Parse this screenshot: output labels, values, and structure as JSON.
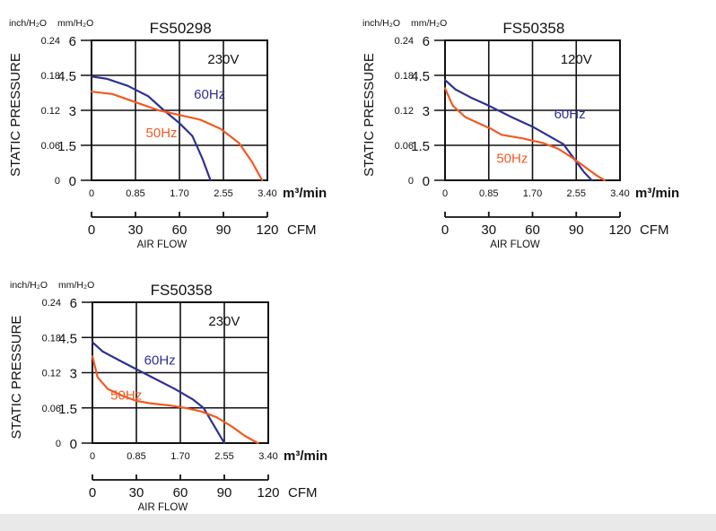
{
  "chart_data": [
    {
      "type": "line",
      "title": "FS50298",
      "voltage": "230V",
      "ylabel": "STATIC PRESSURE",
      "y_unit_inch": "inch/H₂O",
      "y_unit_mm": "mm/H₂O",
      "yticks_mm": [
        "6",
        "4.5",
        "3",
        "1.5",
        "0"
      ],
      "yticks_inch": [
        "0.24",
        "0.18",
        "0.12",
        "0.06",
        "0"
      ],
      "ylim": [
        0,
        6
      ],
      "xlim": [
        0,
        3.4
      ],
      "xticks_m3": [
        "0",
        "0.85",
        "1.70",
        "2.55",
        "3.40"
      ],
      "x_unit_m3": "m³/min",
      "xticks_cfm": [
        "0",
        "30",
        "60",
        "90",
        "120"
      ],
      "x_unit_cfm": "CFM",
      "xlabel": "AIR FLOW",
      "series": [
        {
          "name": "60Hz",
          "color": "#2e3192",
          "x": [
            0,
            0.3,
            0.7,
            1.1,
            1.4,
            1.7,
            1.95,
            2.15,
            2.3
          ],
          "y": [
            4.45,
            4.35,
            4.05,
            3.6,
            3.0,
            2.45,
            1.9,
            0.9,
            0
          ]
        },
        {
          "name": "50Hz",
          "color": "#f15a22",
          "x": [
            0,
            0.4,
            0.85,
            1.3,
            1.7,
            2.1,
            2.5,
            2.85,
            3.1,
            3.3
          ],
          "y": [
            3.8,
            3.7,
            3.35,
            3.0,
            2.8,
            2.6,
            2.2,
            1.6,
            0.8,
            0
          ]
        }
      ]
    },
    {
      "type": "line",
      "title": "FS50358",
      "voltage": "120V",
      "ylabel": "STATIC PRESSURE",
      "y_unit_inch": "inch/H₂O",
      "y_unit_mm": "mm/H₂O",
      "yticks_mm": [
        "6",
        "4.5",
        "3",
        "1.5",
        "0"
      ],
      "yticks_inch": [
        "0.24",
        "0.18",
        "0.12",
        "0.06",
        "0"
      ],
      "ylim": [
        0,
        6
      ],
      "xlim": [
        0,
        3.4
      ],
      "xticks_m3": [
        "0",
        "0.85",
        "1.70",
        "2.55",
        "3.40"
      ],
      "x_unit_m3": "m³/min",
      "xticks_cfm": [
        "0",
        "30",
        "60",
        "90",
        "120"
      ],
      "x_unit_cfm": "CFM",
      "xlabel": "AIR FLOW",
      "series": [
        {
          "name": "60Hz",
          "color": "#2e3192",
          "x": [
            0,
            0.2,
            0.5,
            0.85,
            1.3,
            1.7,
            2.1,
            2.3,
            2.5,
            2.7,
            2.85
          ],
          "y": [
            4.3,
            3.9,
            3.55,
            3.2,
            2.7,
            2.3,
            1.8,
            1.55,
            0.95,
            0.35,
            0
          ]
        },
        {
          "name": "50Hz",
          "color": "#f15a22",
          "x": [
            0,
            0.15,
            0.4,
            0.7,
            0.9,
            1.1,
            1.5,
            1.9,
            2.2,
            2.45,
            2.7,
            2.95,
            3.1
          ],
          "y": [
            3.95,
            3.2,
            2.7,
            2.4,
            2.2,
            1.95,
            1.8,
            1.6,
            1.35,
            1.0,
            0.6,
            0.2,
            0
          ]
        }
      ]
    },
    {
      "type": "line",
      "title": "FS50358",
      "voltage": "230V",
      "ylabel": "STATIC PRESSURE",
      "y_unit_inch": "inch/H₂O",
      "y_unit_mm": "mm/H₂O",
      "yticks_mm": [
        "6",
        "4.5",
        "3",
        "1.5",
        "0"
      ],
      "yticks_inch": [
        "0.24",
        "0.18",
        "0.12",
        "0.06",
        "0"
      ],
      "ylim": [
        0,
        6
      ],
      "xlim": [
        0,
        3.4
      ],
      "xticks_m3": [
        "0",
        "0.85",
        "1.70",
        "2.55",
        "3.40"
      ],
      "x_unit_m3": "m³/min",
      "xticks_cfm": [
        "0",
        "30",
        "60",
        "90",
        "120"
      ],
      "x_unit_cfm": "CFM",
      "xlabel": "AIR FLOW",
      "series": [
        {
          "name": "60Hz",
          "color": "#2e3192",
          "x": [
            0,
            0.2,
            0.5,
            0.85,
            1.2,
            1.6,
            1.95,
            2.15,
            2.35,
            2.55
          ],
          "y": [
            4.3,
            3.9,
            3.55,
            3.15,
            2.75,
            2.3,
            1.85,
            1.5,
            0.75,
            0
          ]
        },
        {
          "name": "50Hz",
          "color": "#f15a22",
          "x": [
            0,
            0.1,
            0.3,
            0.6,
            0.85,
            1.1,
            1.5,
            1.8,
            2.1,
            2.4,
            2.7,
            2.95,
            3.2
          ],
          "y": [
            3.7,
            2.8,
            2.3,
            2.0,
            1.8,
            1.7,
            1.6,
            1.5,
            1.35,
            1.1,
            0.7,
            0.3,
            0
          ]
        }
      ]
    }
  ]
}
